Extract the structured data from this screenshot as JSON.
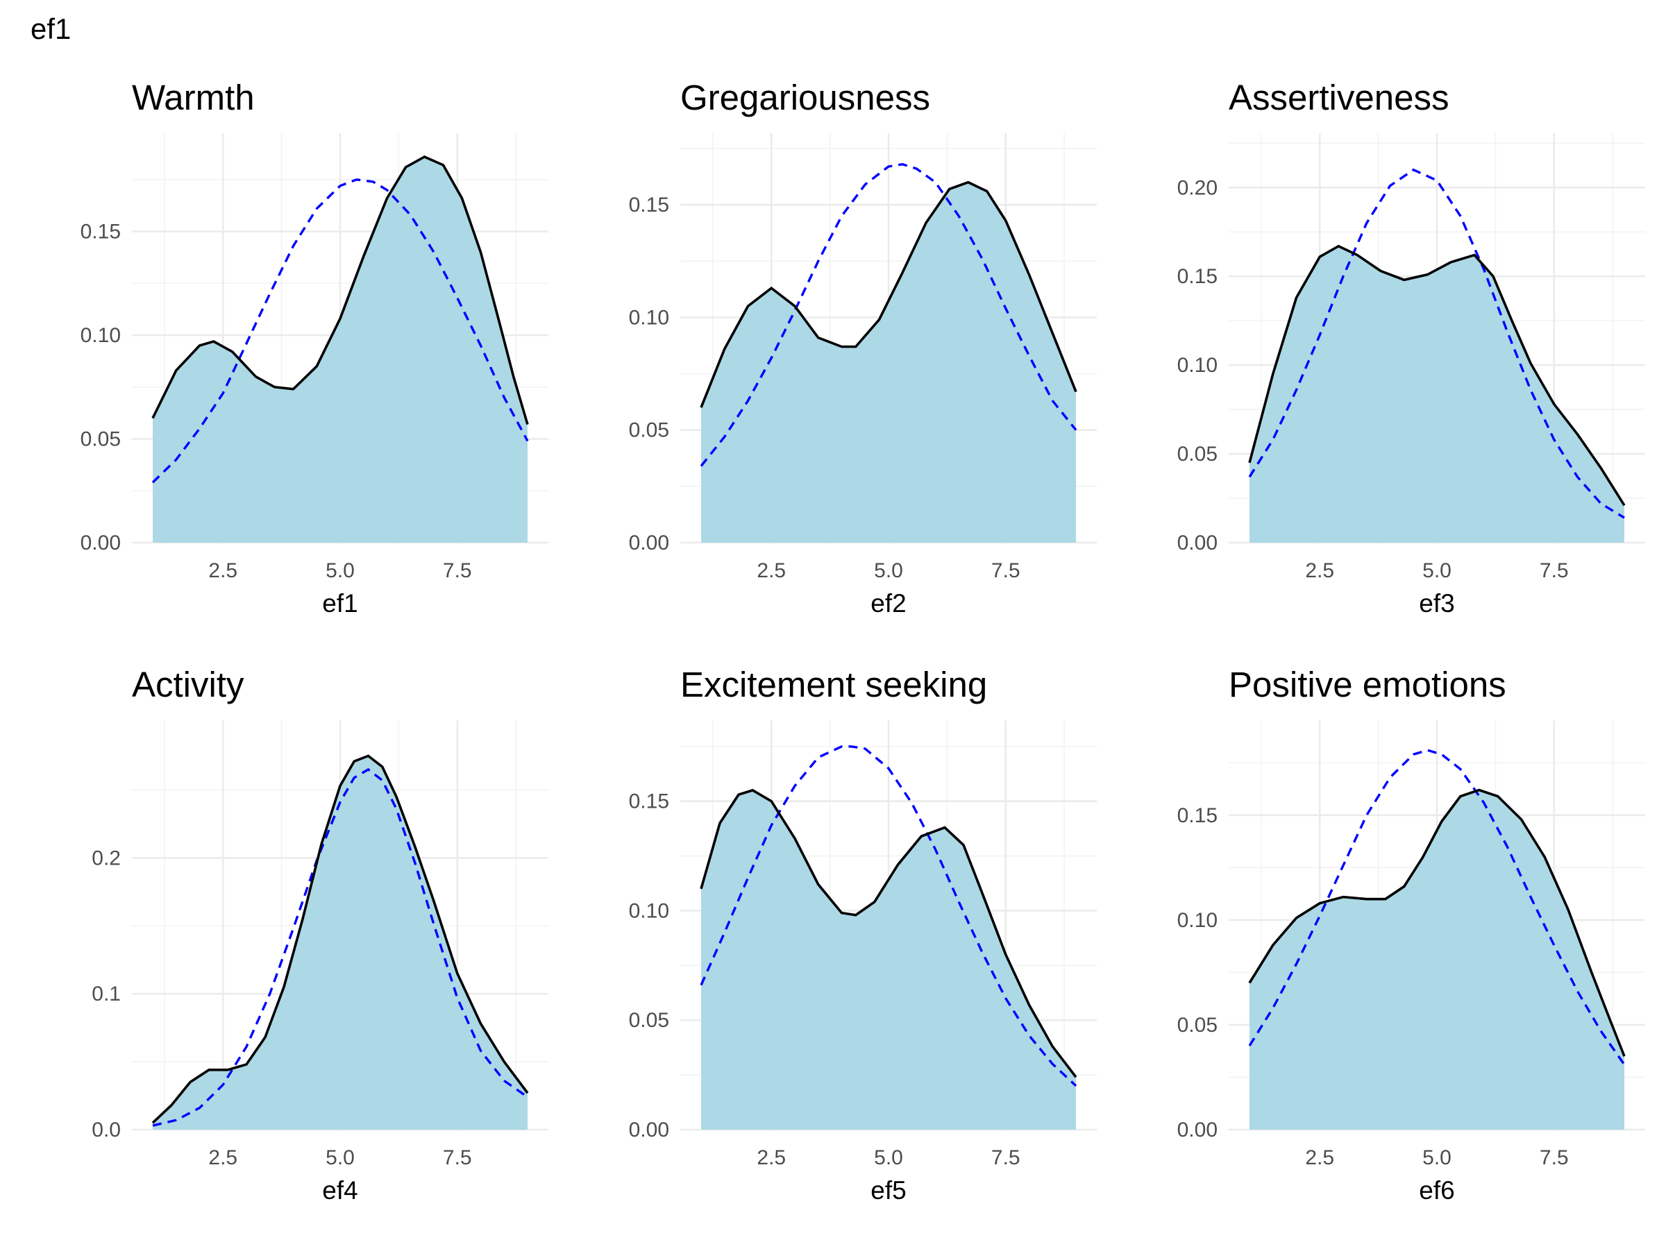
{
  "page_title": "ef1",
  "colors": {
    "fill": "#add8e6",
    "density_line": "#000000",
    "normal_line": "#0000ff"
  },
  "chart_data": [
    {
      "type": "area",
      "title": "Warmth",
      "xlabel": "ef1",
      "ylabel": "",
      "xlim": [
        1,
        9
      ],
      "ylim": [
        0,
        0.19
      ],
      "x_ticks": [
        2.5,
        5.0,
        7.5
      ],
      "x_tick_labels": [
        "2.5",
        "5.0",
        "7.5"
      ],
      "y_ticks": [
        0,
        0.05,
        0.1,
        0.15
      ],
      "y_tick_labels": [
        "0.00",
        "0.05",
        "0.10",
        "0.15"
      ],
      "series": [
        {
          "style": "solid",
          "x": [
            1.0,
            1.5,
            2.0,
            2.3,
            2.7,
            3.2,
            3.6,
            4.0,
            4.5,
            5.0,
            5.5,
            6.0,
            6.4,
            6.8,
            7.2,
            7.6,
            8.0,
            8.4,
            8.7,
            9.0
          ],
          "y": [
            0.06,
            0.083,
            0.095,
            0.097,
            0.092,
            0.08,
            0.075,
            0.074,
            0.085,
            0.108,
            0.138,
            0.166,
            0.181,
            0.186,
            0.182,
            0.166,
            0.14,
            0.106,
            0.08,
            0.057
          ]
        },
        {
          "style": "dashed",
          "x": [
            1.0,
            1.5,
            2.0,
            2.5,
            3.0,
            3.5,
            4.0,
            4.5,
            5.0,
            5.35,
            5.7,
            6.0,
            6.5,
            7.0,
            7.5,
            8.0,
            8.5,
            9.0
          ],
          "y": [
            0.029,
            0.04,
            0.055,
            0.072,
            0.096,
            0.12,
            0.143,
            0.161,
            0.172,
            0.175,
            0.174,
            0.17,
            0.158,
            0.14,
            0.118,
            0.095,
            0.07,
            0.049
          ]
        }
      ]
    },
    {
      "type": "area",
      "title": "Gregariousness",
      "xlabel": "ef2",
      "ylabel": "",
      "xlim": [
        1,
        9
      ],
      "ylim": [
        0,
        0.175
      ],
      "x_ticks": [
        2.5,
        5.0,
        7.5
      ],
      "x_tick_labels": [
        "2.5",
        "5.0",
        "7.5"
      ],
      "y_ticks": [
        0,
        0.05,
        0.1,
        0.15
      ],
      "y_tick_labels": [
        "0.00",
        "0.05",
        "0.10",
        "0.15"
      ],
      "series": [
        {
          "style": "solid",
          "x": [
            1.0,
            1.5,
            2.0,
            2.5,
            3.0,
            3.5,
            4.0,
            4.3,
            4.8,
            5.3,
            5.8,
            6.3,
            6.7,
            7.1,
            7.5,
            8.0,
            8.5,
            9.0
          ],
          "y": [
            0.06,
            0.086,
            0.105,
            0.113,
            0.105,
            0.091,
            0.087,
            0.087,
            0.099,
            0.12,
            0.142,
            0.157,
            0.16,
            0.156,
            0.143,
            0.119,
            0.093,
            0.067
          ]
        },
        {
          "style": "dashed",
          "x": [
            1.0,
            1.5,
            2.0,
            2.5,
            3.0,
            3.5,
            4.0,
            4.5,
            5.0,
            5.3,
            5.6,
            6.0,
            6.5,
            7.0,
            7.5,
            8.0,
            8.5,
            9.0
          ],
          "y": [
            0.034,
            0.047,
            0.063,
            0.082,
            0.103,
            0.125,
            0.145,
            0.159,
            0.167,
            0.168,
            0.166,
            0.16,
            0.145,
            0.126,
            0.104,
            0.083,
            0.063,
            0.05
          ]
        }
      ]
    },
    {
      "type": "area",
      "title": "Assertiveness",
      "xlabel": "ef3",
      "ylabel": "",
      "xlim": [
        1,
        9
      ],
      "ylim": [
        0,
        0.222
      ],
      "x_ticks": [
        2.5,
        5.0,
        7.5
      ],
      "x_tick_labels": [
        "2.5",
        "5.0",
        "7.5"
      ],
      "y_ticks": [
        0,
        0.05,
        0.1,
        0.15,
        0.2
      ],
      "y_tick_labels": [
        "0.00",
        "0.05",
        "0.10",
        "0.15",
        "0.20"
      ],
      "series": [
        {
          "style": "solid",
          "x": [
            1.0,
            1.5,
            2.0,
            2.5,
            2.9,
            3.3,
            3.8,
            4.3,
            4.8,
            5.3,
            5.8,
            6.2,
            6.6,
            7.0,
            7.5,
            8.0,
            8.5,
            9.0
          ],
          "y": [
            0.045,
            0.095,
            0.138,
            0.161,
            0.167,
            0.162,
            0.153,
            0.148,
            0.151,
            0.158,
            0.162,
            0.15,
            0.125,
            0.101,
            0.078,
            0.061,
            0.042,
            0.021
          ]
        },
        {
          "style": "dashed",
          "x": [
            1.0,
            1.5,
            2.0,
            2.5,
            3.0,
            3.5,
            4.0,
            4.5,
            5.0,
            5.5,
            6.0,
            6.5,
            7.0,
            7.5,
            8.0,
            8.5,
            9.0
          ],
          "y": [
            0.037,
            0.058,
            0.086,
            0.117,
            0.15,
            0.18,
            0.201,
            0.21,
            0.204,
            0.184,
            0.154,
            0.119,
            0.086,
            0.058,
            0.037,
            0.022,
            0.014
          ]
        }
      ]
    },
    {
      "type": "area",
      "title": "Activity",
      "xlabel": "ef4",
      "ylabel": "",
      "xlim": [
        1,
        9
      ],
      "ylim": [
        0,
        0.29
      ],
      "x_ticks": [
        2.5,
        5.0,
        7.5
      ],
      "x_tick_labels": [
        "2.5",
        "5.0",
        "7.5"
      ],
      "y_ticks": [
        0,
        0.1,
        0.2
      ],
      "y_tick_labels": [
        "0.0",
        "0.1",
        "0.2"
      ],
      "series": [
        {
          "style": "solid",
          "x": [
            1.0,
            1.4,
            1.8,
            2.2,
            2.6,
            3.0,
            3.4,
            3.8,
            4.2,
            4.6,
            5.0,
            5.3,
            5.6,
            5.9,
            6.2,
            6.6,
            7.0,
            7.5,
            8.0,
            8.5,
            9.0
          ],
          "y": [
            0.005,
            0.018,
            0.035,
            0.044,
            0.044,
            0.048,
            0.068,
            0.105,
            0.155,
            0.21,
            0.253,
            0.271,
            0.275,
            0.267,
            0.245,
            0.208,
            0.168,
            0.115,
            0.078,
            0.05,
            0.027
          ]
        },
        {
          "style": "dashed",
          "x": [
            1.0,
            1.5,
            2.0,
            2.5,
            3.0,
            3.5,
            4.0,
            4.5,
            5.0,
            5.3,
            5.6,
            5.9,
            6.2,
            6.6,
            7.0,
            7.5,
            8.0,
            8.5,
            9.0
          ],
          "y": [
            0.003,
            0.007,
            0.016,
            0.033,
            0.061,
            0.1,
            0.148,
            0.198,
            0.241,
            0.259,
            0.265,
            0.257,
            0.236,
            0.196,
            0.151,
            0.097,
            0.058,
            0.036,
            0.024
          ]
        }
      ]
    },
    {
      "type": "area",
      "title": "Excitement seeking",
      "xlabel": "ef5",
      "ylabel": "",
      "xlim": [
        1,
        9
      ],
      "ylim": [
        0,
        0.18
      ],
      "x_ticks": [
        2.5,
        5.0,
        7.5
      ],
      "x_tick_labels": [
        "2.5",
        "5.0",
        "7.5"
      ],
      "y_ticks": [
        0,
        0.05,
        0.1,
        0.15
      ],
      "y_tick_labels": [
        "0.00",
        "0.05",
        "0.10",
        "0.15"
      ],
      "series": [
        {
          "style": "solid",
          "x": [
            1.0,
            1.4,
            1.8,
            2.1,
            2.5,
            3.0,
            3.5,
            4.0,
            4.3,
            4.7,
            5.2,
            5.7,
            6.2,
            6.6,
            7.0,
            7.5,
            8.0,
            8.5,
            9.0
          ],
          "y": [
            0.11,
            0.14,
            0.153,
            0.155,
            0.15,
            0.133,
            0.112,
            0.099,
            0.098,
            0.104,
            0.121,
            0.134,
            0.138,
            0.13,
            0.108,
            0.08,
            0.057,
            0.038,
            0.024
          ]
        },
        {
          "style": "dashed",
          "x": [
            1.0,
            1.5,
            2.0,
            2.5,
            3.0,
            3.5,
            4.0,
            4.2,
            4.5,
            5.0,
            5.5,
            6.0,
            6.5,
            7.0,
            7.5,
            8.0,
            8.5,
            9.0
          ],
          "y": [
            0.066,
            0.09,
            0.115,
            0.139,
            0.157,
            0.17,
            0.175,
            0.175,
            0.174,
            0.165,
            0.149,
            0.128,
            0.104,
            0.081,
            0.06,
            0.043,
            0.03,
            0.02
          ]
        }
      ]
    },
    {
      "type": "area",
      "title": "Positive emotions",
      "xlabel": "ef6",
      "ylabel": "",
      "xlim": [
        1,
        9
      ],
      "ylim": [
        0,
        0.188
      ],
      "x_ticks": [
        2.5,
        5.0,
        7.5
      ],
      "x_tick_labels": [
        "2.5",
        "5.0",
        "7.5"
      ],
      "y_ticks": [
        0,
        0.05,
        0.1,
        0.15
      ],
      "y_tick_labels": [
        "0.00",
        "0.05",
        "0.10",
        "0.15"
      ],
      "series": [
        {
          "style": "solid",
          "x": [
            1.0,
            1.5,
            2.0,
            2.5,
            3.0,
            3.5,
            3.9,
            4.3,
            4.7,
            5.1,
            5.5,
            5.9,
            6.3,
            6.8,
            7.3,
            7.8,
            8.3,
            8.7,
            9.0
          ],
          "y": [
            0.07,
            0.088,
            0.101,
            0.108,
            0.111,
            0.11,
            0.11,
            0.116,
            0.13,
            0.147,
            0.159,
            0.162,
            0.159,
            0.148,
            0.13,
            0.105,
            0.075,
            0.052,
            0.035
          ]
        },
        {
          "style": "dashed",
          "x": [
            1.0,
            1.5,
            2.0,
            2.5,
            3.0,
            3.5,
            4.0,
            4.5,
            4.8,
            5.1,
            5.5,
            6.0,
            6.5,
            7.0,
            7.5,
            8.0,
            8.5,
            9.0
          ],
          "y": [
            0.04,
            0.058,
            0.079,
            0.102,
            0.126,
            0.15,
            0.168,
            0.179,
            0.181,
            0.179,
            0.172,
            0.156,
            0.135,
            0.111,
            0.088,
            0.066,
            0.047,
            0.031
          ]
        }
      ]
    }
  ]
}
